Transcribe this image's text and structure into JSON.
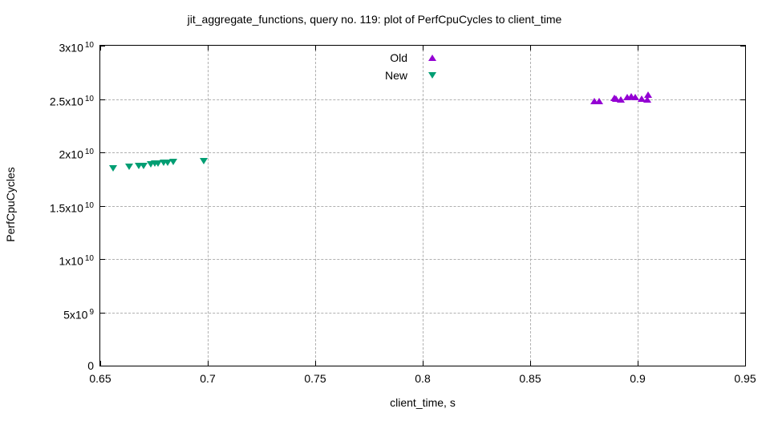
{
  "chart_data": {
    "type": "scatter",
    "title": "jit_aggregate_functions, query no. 119: plot of PerfCpuCycles to client_time",
    "xlabel": "client_time, s",
    "ylabel": "PerfCpuCycles",
    "xlim": [
      0.65,
      0.95
    ],
    "ylim": [
      0,
      30000000000
    ],
    "grid": true,
    "grid_style": "dashed",
    "legend_position": "top-center-inside",
    "x_ticks": [
      {
        "v": 0.65,
        "label": "0.65"
      },
      {
        "v": 0.7,
        "label": "0.7"
      },
      {
        "v": 0.75,
        "label": "0.75"
      },
      {
        "v": 0.8,
        "label": "0.8"
      },
      {
        "v": 0.85,
        "label": "0.85"
      },
      {
        "v": 0.9,
        "label": "0.9"
      },
      {
        "v": 0.95,
        "label": "0.95"
      }
    ],
    "y_ticks": [
      {
        "v": 0,
        "mantissa": "0",
        "exponent": ""
      },
      {
        "v": 5000000000.0,
        "mantissa": "5x10",
        "exponent": "9"
      },
      {
        "v": 10000000000.0,
        "mantissa": "1x10",
        "exponent": "10"
      },
      {
        "v": 15000000000.0,
        "mantissa": "1.5x10",
        "exponent": "10"
      },
      {
        "v": 20000000000.0,
        "mantissa": "2x10",
        "exponent": "10"
      },
      {
        "v": 25000000000.0,
        "mantissa": "2.5x10",
        "exponent": "10"
      },
      {
        "v": 30000000000.0,
        "mantissa": "3x10",
        "exponent": "10"
      }
    ],
    "series": [
      {
        "name": "Old",
        "marker": "triangle-up",
        "color": "#9400d3",
        "points": [
          [
            0.88,
            24840000000.0
          ],
          [
            0.882,
            24840000000.0
          ],
          [
            0.889,
            25140000000.0
          ],
          [
            0.89,
            25060000000.0
          ],
          [
            0.892,
            24990000000.0
          ],
          [
            0.895,
            25210000000.0
          ],
          [
            0.897,
            25290000000.0
          ],
          [
            0.899,
            25210000000.0
          ],
          [
            0.902,
            25060000000.0
          ],
          [
            0.9045,
            24990000000.0
          ],
          [
            0.905,
            25440000000.0
          ]
        ]
      },
      {
        "name": "New",
        "marker": "triangle-down",
        "color": "#009e73",
        "points": [
          [
            0.656,
            18480000000.0
          ],
          [
            0.6635,
            18630000000.0
          ],
          [
            0.668,
            18700000000.0
          ],
          [
            0.67,
            18700000000.0
          ],
          [
            0.6735,
            18850000000.0
          ],
          [
            0.6755,
            18930000000.0
          ],
          [
            0.677,
            18930000000.0
          ],
          [
            0.6795,
            19000000000.0
          ],
          [
            0.6815,
            19000000000.0
          ],
          [
            0.684,
            19080000000.0
          ],
          [
            0.698,
            19150000000.0
          ]
        ]
      }
    ]
  },
  "colors": {
    "old_series": "#9400d3",
    "new_series": "#009e73",
    "grid": "#b0b0b0",
    "axis": "#000000",
    "text": "#000000",
    "background": "#ffffff"
  }
}
